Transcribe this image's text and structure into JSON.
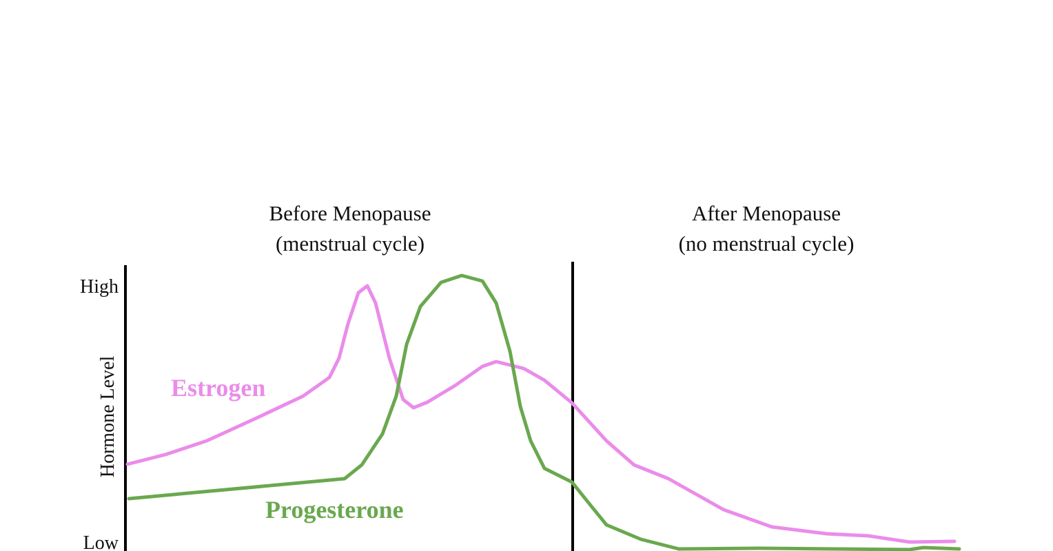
{
  "headers": [
    {
      "title": "Before Menopause",
      "subtitle": "(menstrual cycle)"
    },
    {
      "title": "After Menopause",
      "subtitle": "(no menstrual cycle)"
    }
  ],
  "y_axis": {
    "label": "Hormone Level",
    "high": "High",
    "low": "Low"
  },
  "curves": [
    {
      "label": "Estrogen"
    },
    {
      "label": "Progesterone"
    }
  ]
}
